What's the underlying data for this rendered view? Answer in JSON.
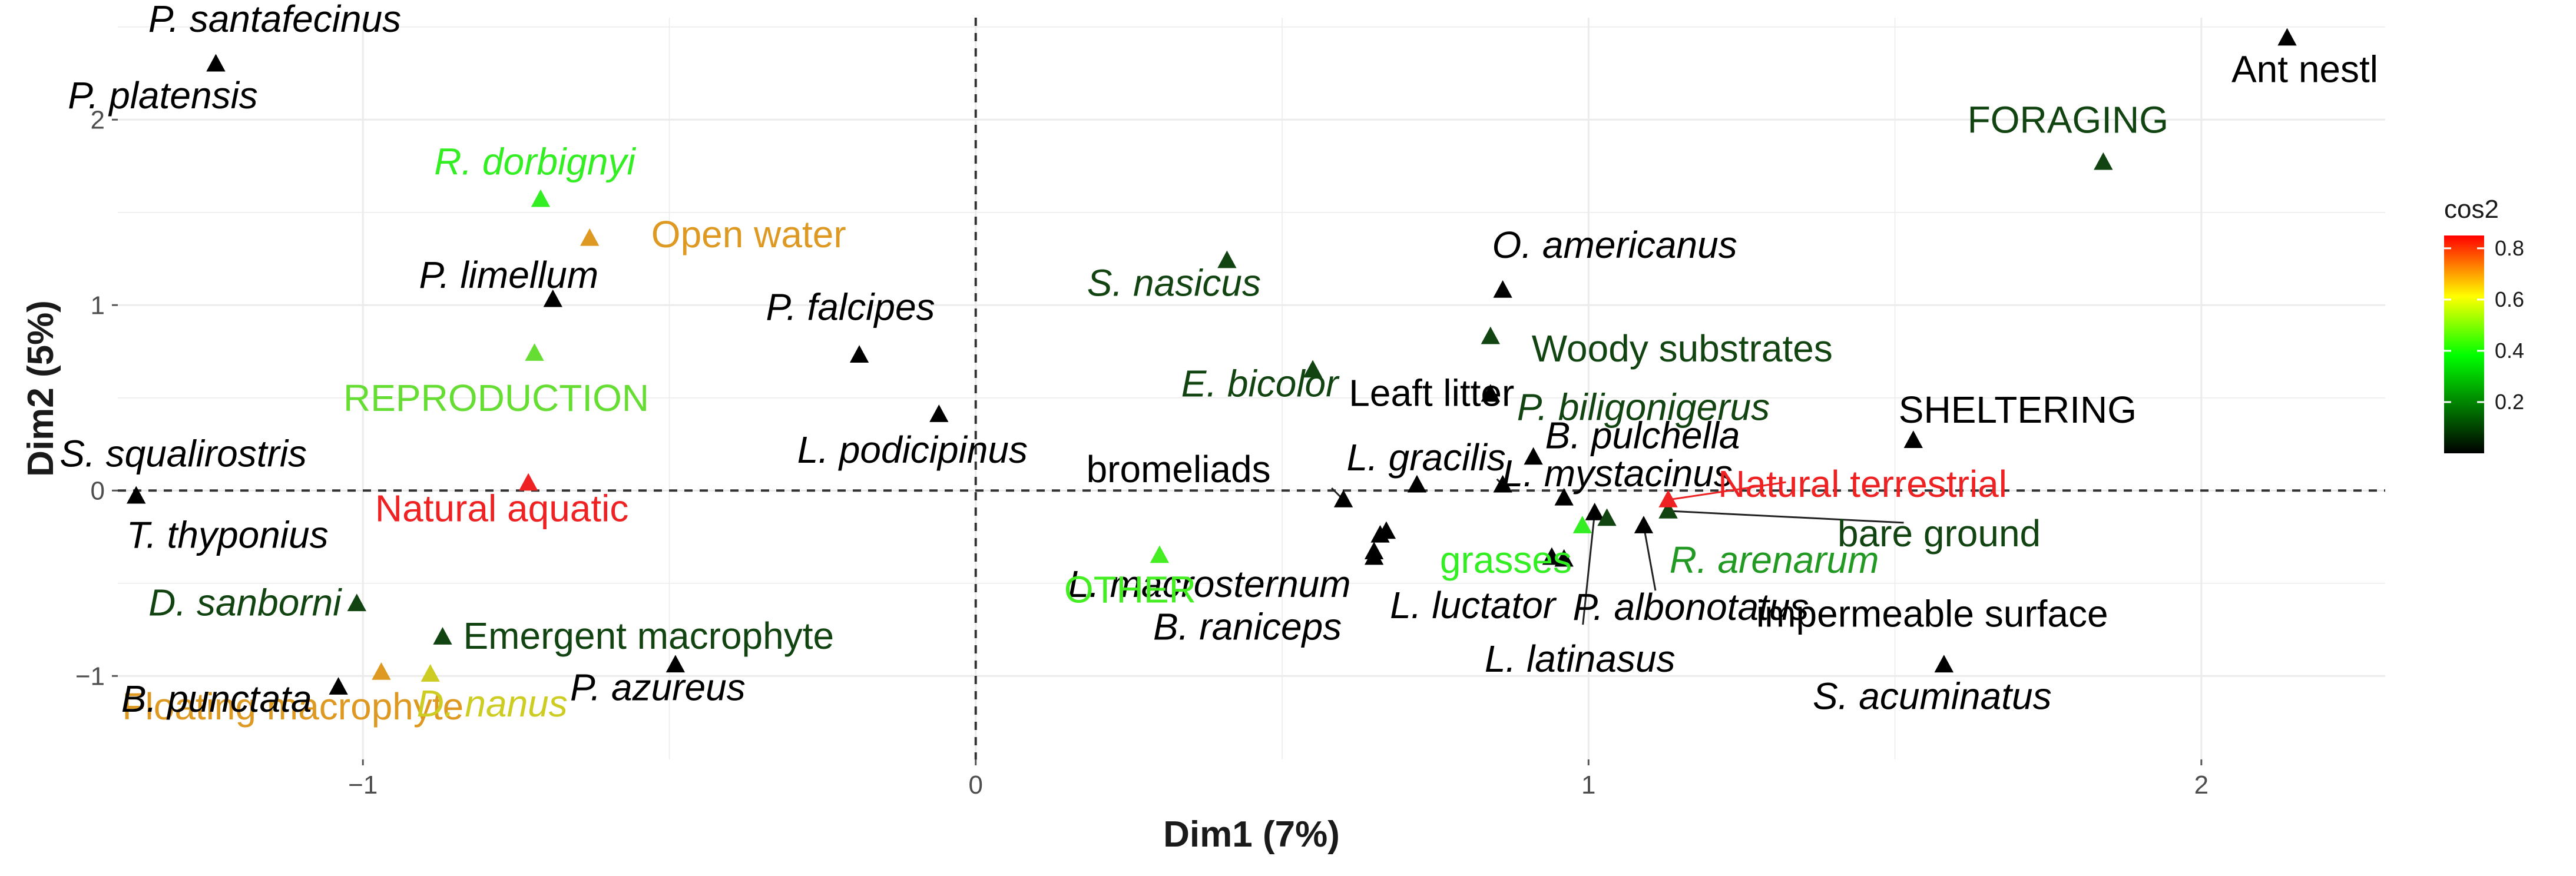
{
  "chart_data": {
    "type": "scatter",
    "xlabel": "Dim1 (7%)",
    "ylabel": "Dim2 (5%)",
    "xlim": [
      -1.4,
      2.3
    ],
    "ylim": [
      -1.45,
      2.55
    ],
    "x_ticks": [
      -1,
      0,
      1,
      2
    ],
    "y_ticks": [
      -1,
      0,
      1,
      2
    ],
    "x_tick_labels": [
      "−1",
      "0",
      "1",
      "2"
    ],
    "y_tick_labels": [
      "−1",
      "0",
      "1",
      "2"
    ],
    "grid": true,
    "reference_lines": {
      "x": 0,
      "y": 0
    },
    "legend": {
      "title": "cos2",
      "placement": "right",
      "ticks": [
        0.2,
        0.4,
        0.6,
        0.8
      ],
      "tick_labels": [
        "0.2",
        "0.4",
        "0.6",
        "0.8"
      ],
      "range": [
        0,
        0.85
      ],
      "colors": [
        "#000000",
        "#00ff00",
        "#ffff00",
        "#ff0000"
      ]
    },
    "points": [
      {
        "label": "P. santafecinus",
        "x": -1.24,
        "y": 2.3,
        "color": "#000000",
        "italic": true
      },
      {
        "label": "P. platensis",
        "x": -1.24,
        "y": 2.3,
        "color": "#000000",
        "italic": true
      },
      {
        "label": "R. dorbignyi",
        "x": -0.71,
        "y": 1.57,
        "color": "#33ee22",
        "italic": true
      },
      {
        "label": "Open water",
        "x": -0.63,
        "y": 1.36,
        "color": "#dd9922",
        "italic": false
      },
      {
        "label": "P. limellum",
        "x": -0.69,
        "y": 1.03,
        "color": "#000000",
        "italic": true
      },
      {
        "label": "REPRODUCTION",
        "x": -0.72,
        "y": 0.74,
        "color": "#66dd33",
        "italic": false
      },
      {
        "label": "S. squalirostris",
        "x": -1.37,
        "y": -0.03,
        "color": "#000000",
        "italic": true
      },
      {
        "label": "T. thyponius",
        "x": -1.37,
        "y": -0.03,
        "color": "#000000",
        "italic": true
      },
      {
        "label": "Natural aquatic",
        "x": -0.73,
        "y": 0.04,
        "color": "#ee2222",
        "italic": false
      },
      {
        "label": "D. sanborni",
        "x": -1.01,
        "y": -0.61,
        "color": "#114411",
        "italic": true
      },
      {
        "label": "Floating macrophyte",
        "x": -0.97,
        "y": -0.98,
        "color": "#dd9922",
        "italic": false
      },
      {
        "label": "Emergent macrophyte",
        "x": -0.87,
        "y": -0.79,
        "color": "#114411",
        "italic": false
      },
      {
        "label": "B. punctata",
        "x": -1.04,
        "y": -1.06,
        "color": "#000000",
        "italic": true
      },
      {
        "label": "D. nanus",
        "x": -0.89,
        "y": -0.99,
        "color": "#cccc22",
        "italic": true
      },
      {
        "label": "P. azureus",
        "x": -0.49,
        "y": -0.94,
        "color": "#000000",
        "italic": true
      },
      {
        "label": "P. falcipes",
        "x": -0.19,
        "y": 0.73,
        "color": "#000000",
        "italic": true
      },
      {
        "label": "L. podicipinus",
        "x": -0.06,
        "y": 0.41,
        "color": "#000000",
        "italic": true
      },
      {
        "label": "S. nasicus",
        "x": 0.41,
        "y": 1.24,
        "color": "#114411",
        "italic": true
      },
      {
        "label": "E. bicolor",
        "x": 0.55,
        "y": 0.65,
        "color": "#114411",
        "italic": true
      },
      {
        "label": "bromeliads",
        "x": 0.6,
        "y": -0.05,
        "color": "#000000",
        "italic": false
      },
      {
        "label": "L. macrosternum",
        "x": 0.66,
        "y": -0.24,
        "color": "#000000",
        "italic": true
      },
      {
        "label": "OTHER",
        "x": 0.3,
        "y": -0.35,
        "color": "#44ee22",
        "italic": false
      },
      {
        "label": "B. raniceps",
        "x": 0.65,
        "y": -0.36,
        "color": "#000000",
        "italic": true
      },
      {
        "label": "O. americanus",
        "x": 0.86,
        "y": 1.08,
        "color": "#000000",
        "italic": true
      },
      {
        "label": "Woody substrates",
        "x": 0.84,
        "y": 0.83,
        "color": "#114411",
        "italic": false
      },
      {
        "label": "P. biligonigerus",
        "x": 0.84,
        "y": 0.52,
        "color": "#114411",
        "italic": true
      },
      {
        "label": "Leaft litter",
        "x": 0.84,
        "y": 0.52,
        "color": "#000000",
        "italic": false
      },
      {
        "label": "L. gracilis",
        "x": 0.86,
        "y": 0.03,
        "color": "#000000",
        "italic": true
      },
      {
        "label": "B. pulchella",
        "x": 0.91,
        "y": 0.18,
        "color": "#000000",
        "italic": true
      },
      {
        "label": "L. mystacinus",
        "x": 0.96,
        "y": -0.04,
        "color": "#000000",
        "italic": true
      },
      {
        "label": "grasses",
        "x": 0.99,
        "y": -0.19,
        "color": "#33ee22",
        "italic": false
      },
      {
        "label": "L. luctator",
        "x": 0.96,
        "y": -0.37,
        "color": "#000000",
        "italic": true
      },
      {
        "label": "L. latinasus",
        "x": 1.01,
        "y": -0.12,
        "color": "#000000",
        "italic": true
      },
      {
        "label": "P. albonotatus",
        "x": 1.09,
        "y": -0.19,
        "color": "#000000",
        "italic": true
      },
      {
        "label": "R. arenarum",
        "x": 1.13,
        "y": -0.11,
        "color": "#229922",
        "italic": true
      },
      {
        "label": "bare ground",
        "x": 1.13,
        "y": -0.11,
        "color": "#114411",
        "italic": false
      },
      {
        "label": "Natural terrestrial",
        "x": 1.13,
        "y": -0.05,
        "color": "#ee2222",
        "italic": false
      },
      {
        "label": "SHELTERING",
        "x": 1.53,
        "y": 0.27,
        "color": "#000000",
        "italic": false
      },
      {
        "label": "impermeable surface",
        "x": 1.58,
        "y": -0.94,
        "color": "#000000",
        "italic": false
      },
      {
        "label": "S. acuminatus",
        "x": 1.58,
        "y": -0.94,
        "color": "#000000",
        "italic": true
      },
      {
        "label": "FORAGING",
        "x": 1.84,
        "y": 1.77,
        "color": "#114411",
        "italic": false
      },
      {
        "label": "Ant nestl",
        "x": 2.14,
        "y": 2.44,
        "color": "#000000",
        "italic": false
      },
      {
        "label": "",
        "x": 0.72,
        "y": 0.03,
        "color": "#000000",
        "italic": false
      },
      {
        "label": "",
        "x": 0.67,
        "y": -0.22,
        "color": "#000000",
        "italic": false
      },
      {
        "label": "",
        "x": 0.65,
        "y": -0.33,
        "color": "#000000",
        "italic": false
      },
      {
        "label": "",
        "x": 0.94,
        "y": -0.36,
        "color": "#000000",
        "italic": false
      },
      {
        "label": "",
        "x": 1.03,
        "y": -0.15,
        "color": "#114411",
        "italic": false
      }
    ]
  }
}
